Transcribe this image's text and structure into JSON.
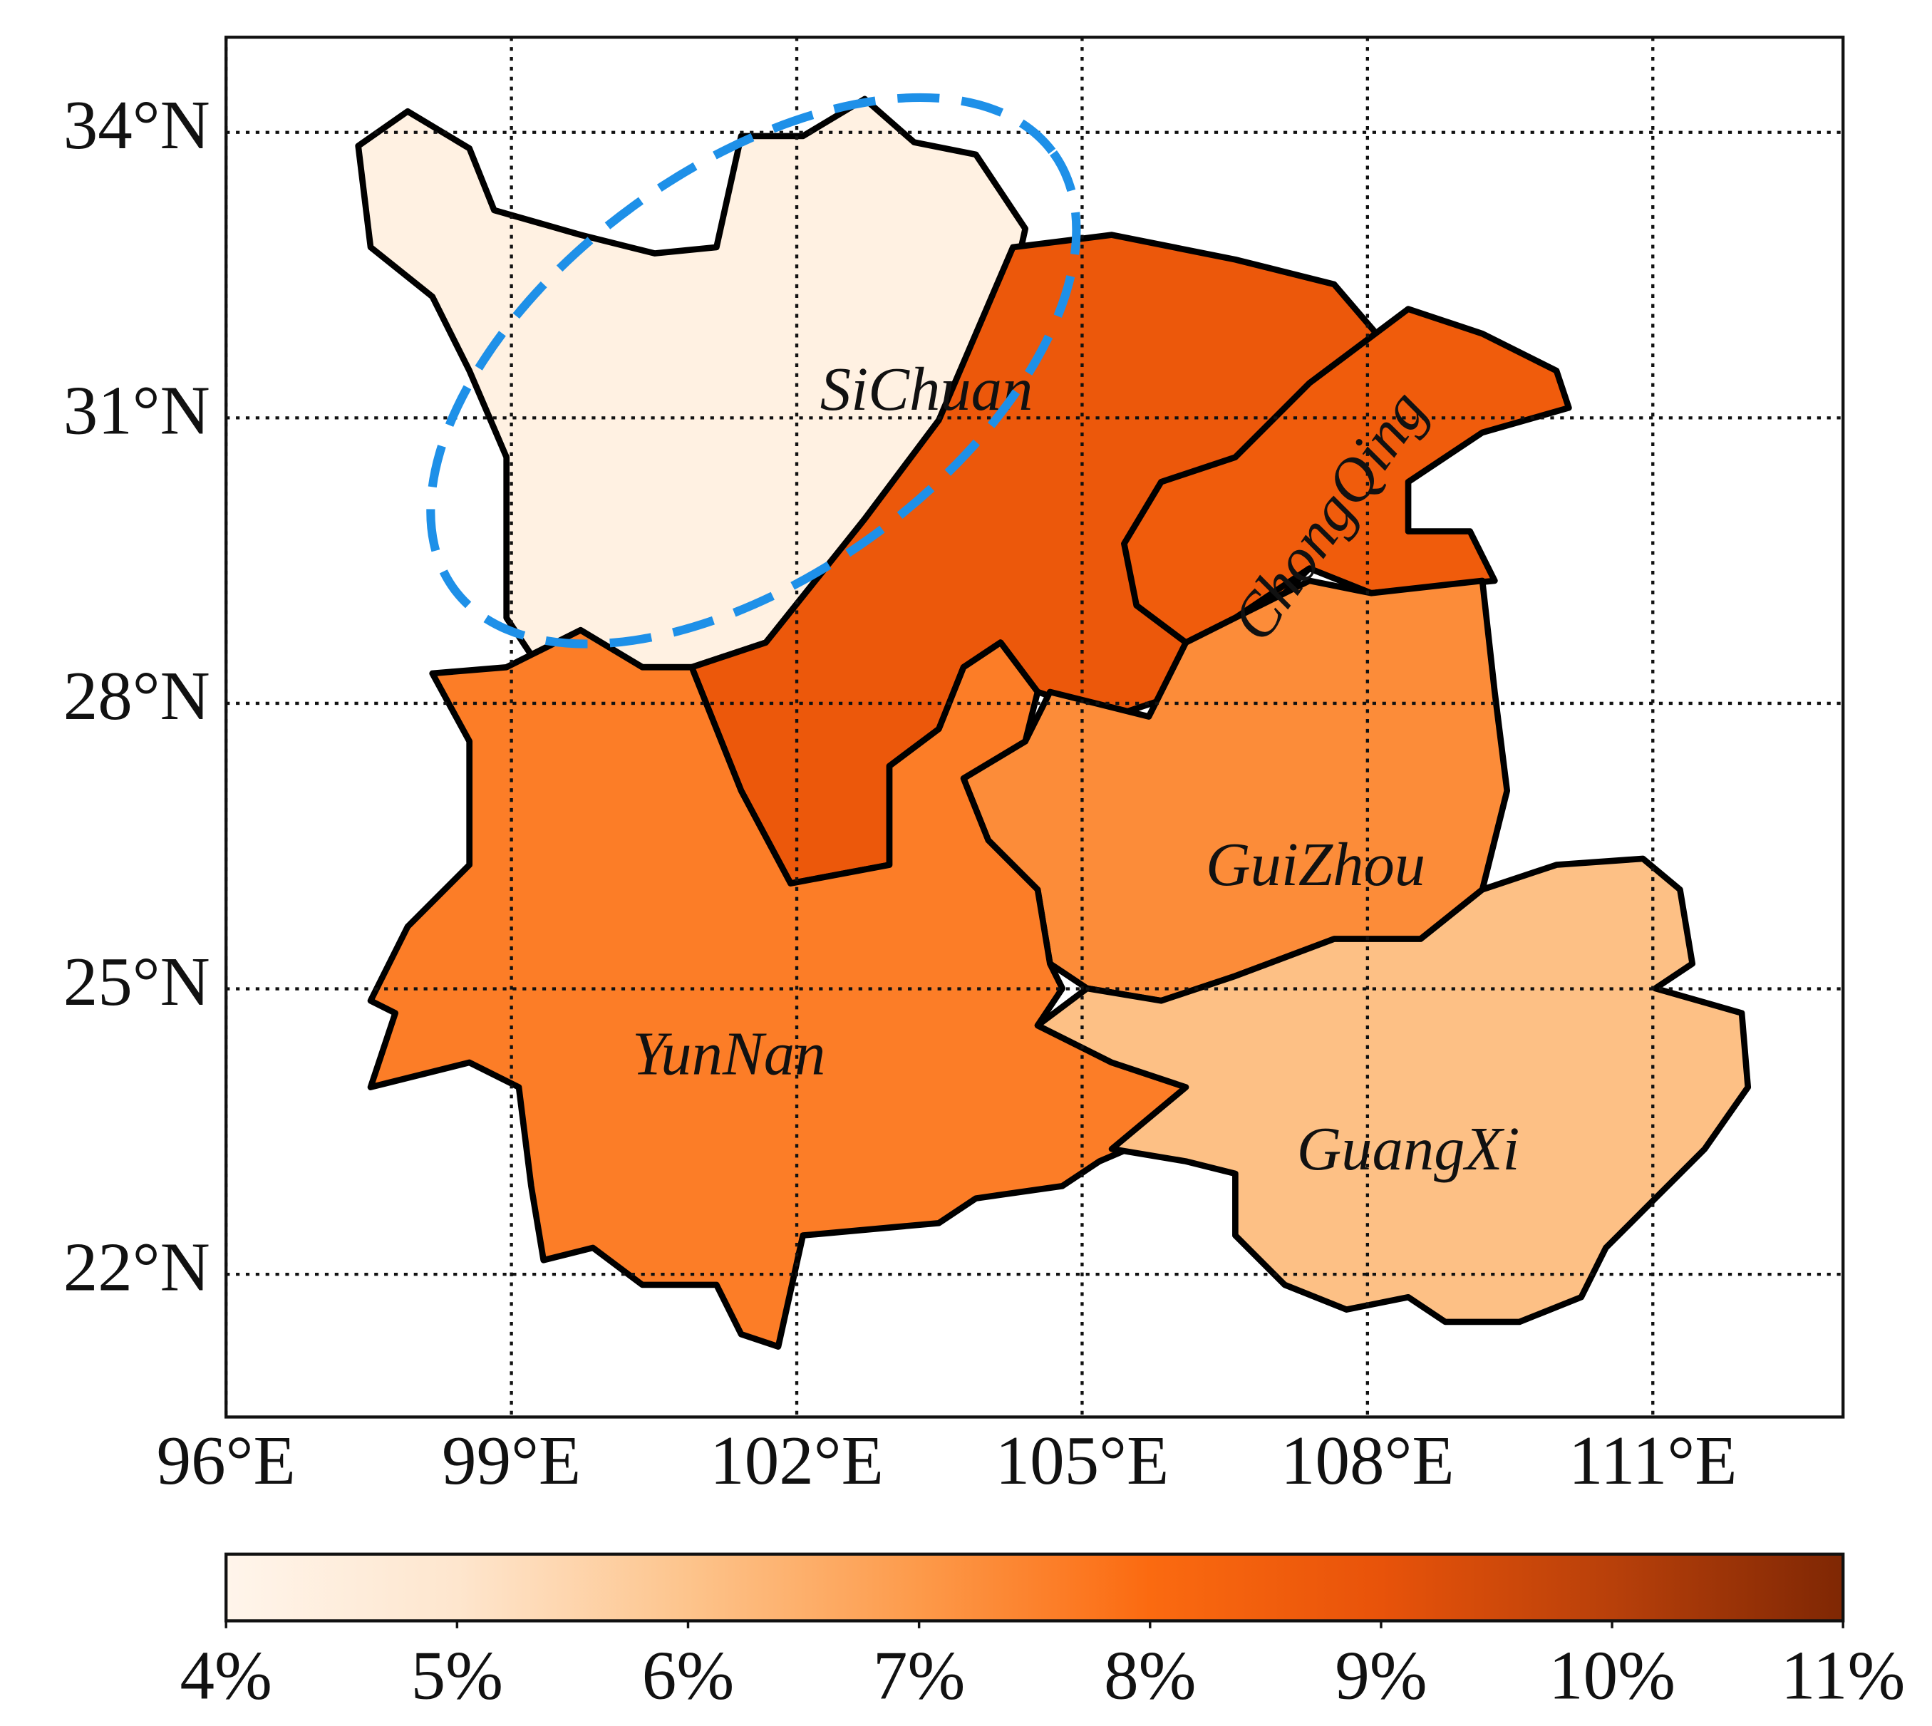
{
  "map": {
    "xlim": [
      96,
      113
    ],
    "ylim": [
      20.5,
      35
    ],
    "lon_ticks": [
      {
        "value": 96,
        "label": "96°E"
      },
      {
        "value": 99,
        "label": "99°E"
      },
      {
        "value": 102,
        "label": "102°E"
      },
      {
        "value": 105,
        "label": "105°E"
      },
      {
        "value": 108,
        "label": "108°E"
      },
      {
        "value": 111,
        "label": "111°E"
      }
    ],
    "lat_ticks": [
      {
        "value": 22,
        "label": "22°N"
      },
      {
        "value": 25,
        "label": "25°N"
      },
      {
        "value": 28,
        "label": "28°N"
      },
      {
        "value": 31,
        "label": "31°N"
      },
      {
        "value": 34,
        "label": "34°N"
      }
    ],
    "grid": true,
    "regions": [
      {
        "name": "SiChuan",
        "value": 4.3
      },
      {
        "value": 8.8
      },
      {
        "name": "ChongQing",
        "value": 8.6
      },
      {
        "name": "GuiZhou",
        "value": 7.3
      },
      {
        "name": "YunNan",
        "value": 7.6
      },
      {
        "name": "GuangXi",
        "value": 6.1
      }
    ],
    "colorbar": {
      "range": [
        4,
        11
      ],
      "ticks": [
        {
          "value": 4,
          "label": "4%"
        },
        {
          "value": 5,
          "label": "5%"
        },
        {
          "value": 6,
          "label": "6%"
        },
        {
          "value": 7,
          "label": "7%"
        },
        {
          "value": 8,
          "label": "8%"
        },
        {
          "value": 9,
          "label": "9%"
        },
        {
          "value": 10,
          "label": "10%"
        },
        {
          "value": 11,
          "label": "11%"
        }
      ],
      "colors": [
        "#fff5eb",
        "#fee6ce",
        "#fdc48c",
        "#fd9a4a",
        "#fb6a10",
        "#e8530a",
        "#b8400a",
        "#7f2704"
      ]
    }
  }
}
